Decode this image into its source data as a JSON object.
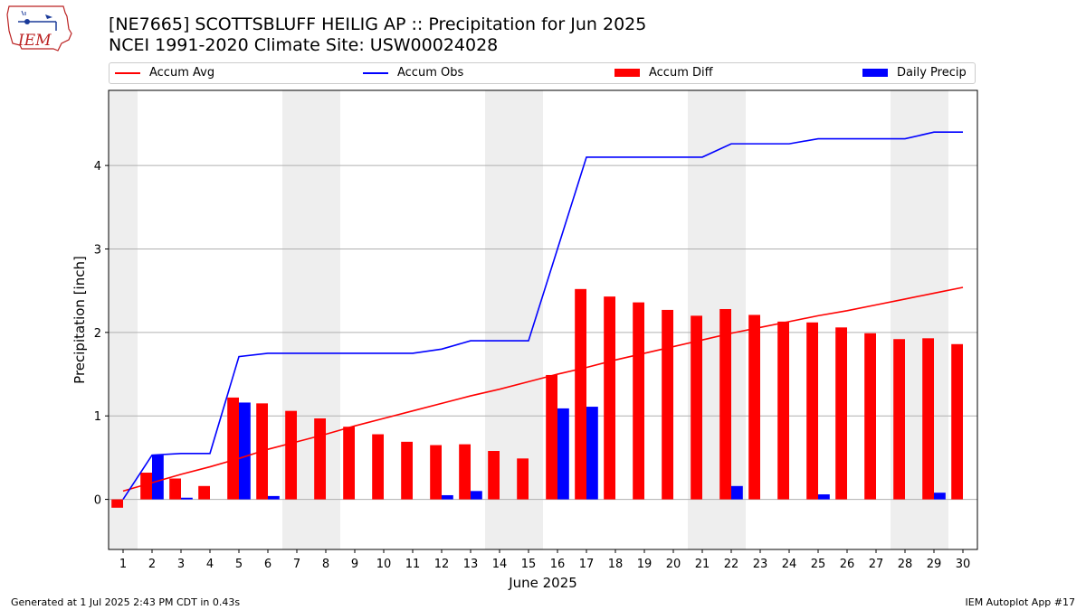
{
  "title_line1": "[NE7665] SCOTTSBLUFF HEILIG AP :: Precipitation for Jun 2025",
  "title_line2": "NCEI 1991-2020 Climate Site: USW00024028",
  "logo_text": "IEM",
  "footer_left": "Generated at 1 Jul 2025 2:43 PM CDT in 0.43s",
  "footer_right": "IEM Autoplot App #17",
  "colors": {
    "avg": "#ff0000",
    "obs": "#0000ff",
    "diff": "#ff0000",
    "daily": "#0000ff",
    "weekend": "#eeeeee",
    "grid": "#b0b0b0"
  },
  "legend": [
    {
      "label": "Accum Avg",
      "color": "#ff0000",
      "kind": "line"
    },
    {
      "label": "Accum Obs",
      "color": "#0000ff",
      "kind": "line"
    },
    {
      "label": "Accum Diff",
      "color": "#ff0000",
      "kind": "rect"
    },
    {
      "label": "Daily Precip",
      "color": "#0000ff",
      "kind": "rect"
    }
  ],
  "chart_data": {
    "type": "bar",
    "xlabel": "June 2025",
    "ylabel": "Precipitation [inch]",
    "ylim": [
      -0.6,
      4.9
    ],
    "yticks": [
      0,
      1,
      2,
      3,
      4
    ],
    "days": [
      1,
      2,
      3,
      4,
      5,
      6,
      7,
      8,
      9,
      10,
      11,
      12,
      13,
      14,
      15,
      16,
      17,
      18,
      19,
      20,
      21,
      22,
      23,
      24,
      25,
      26,
      27,
      28,
      29,
      30
    ],
    "shaded_day_ranges": [
      [
        1,
        1
      ],
      [
        7,
        8
      ],
      [
        14,
        15
      ],
      [
        21,
        22
      ],
      [
        28,
        29
      ]
    ],
    "grid": true,
    "series": [
      {
        "name": "Accum Avg",
        "type": "line",
        "values": [
          0.1,
          0.2,
          0.3,
          0.39,
          0.49,
          0.6,
          0.69,
          0.78,
          0.88,
          0.97,
          1.06,
          1.15,
          1.24,
          1.32,
          1.41,
          1.5,
          1.58,
          1.67,
          1.75,
          1.83,
          1.91,
          1.99,
          2.06,
          2.13,
          2.2,
          2.26,
          2.33,
          2.4,
          2.47,
          2.54
        ]
      },
      {
        "name": "Accum Obs",
        "type": "line",
        "values": [
          0.0,
          0.53,
          0.55,
          0.55,
          1.71,
          1.75,
          1.75,
          1.75,
          1.75,
          1.75,
          1.75,
          1.8,
          1.9,
          1.9,
          1.9,
          3.0,
          4.1,
          4.1,
          4.1,
          4.1,
          4.1,
          4.26,
          4.26,
          4.26,
          4.32,
          4.32,
          4.32,
          4.32,
          4.4,
          4.4
        ]
      },
      {
        "name": "Accum Diff",
        "type": "bar",
        "values": [
          -0.1,
          0.32,
          0.25,
          0.16,
          1.22,
          1.15,
          1.06,
          0.97,
          0.87,
          0.78,
          0.69,
          0.65,
          0.66,
          0.58,
          0.49,
          1.49,
          2.52,
          2.43,
          2.36,
          2.27,
          2.2,
          2.28,
          2.21,
          2.13,
          2.12,
          2.06,
          1.99,
          1.92,
          1.93,
          1.86
        ]
      },
      {
        "name": "Daily Precip",
        "type": "bar",
        "values": [
          0.0,
          0.53,
          0.02,
          0.0,
          1.16,
          0.04,
          0.0,
          0.0,
          0.0,
          0.0,
          0.0,
          0.05,
          0.1,
          0.0,
          0.0,
          1.09,
          1.11,
          0.0,
          0.0,
          0.0,
          0.0,
          0.16,
          0.0,
          0.0,
          0.06,
          0.0,
          0.0,
          0.0,
          0.08,
          0.0
        ]
      }
    ]
  }
}
